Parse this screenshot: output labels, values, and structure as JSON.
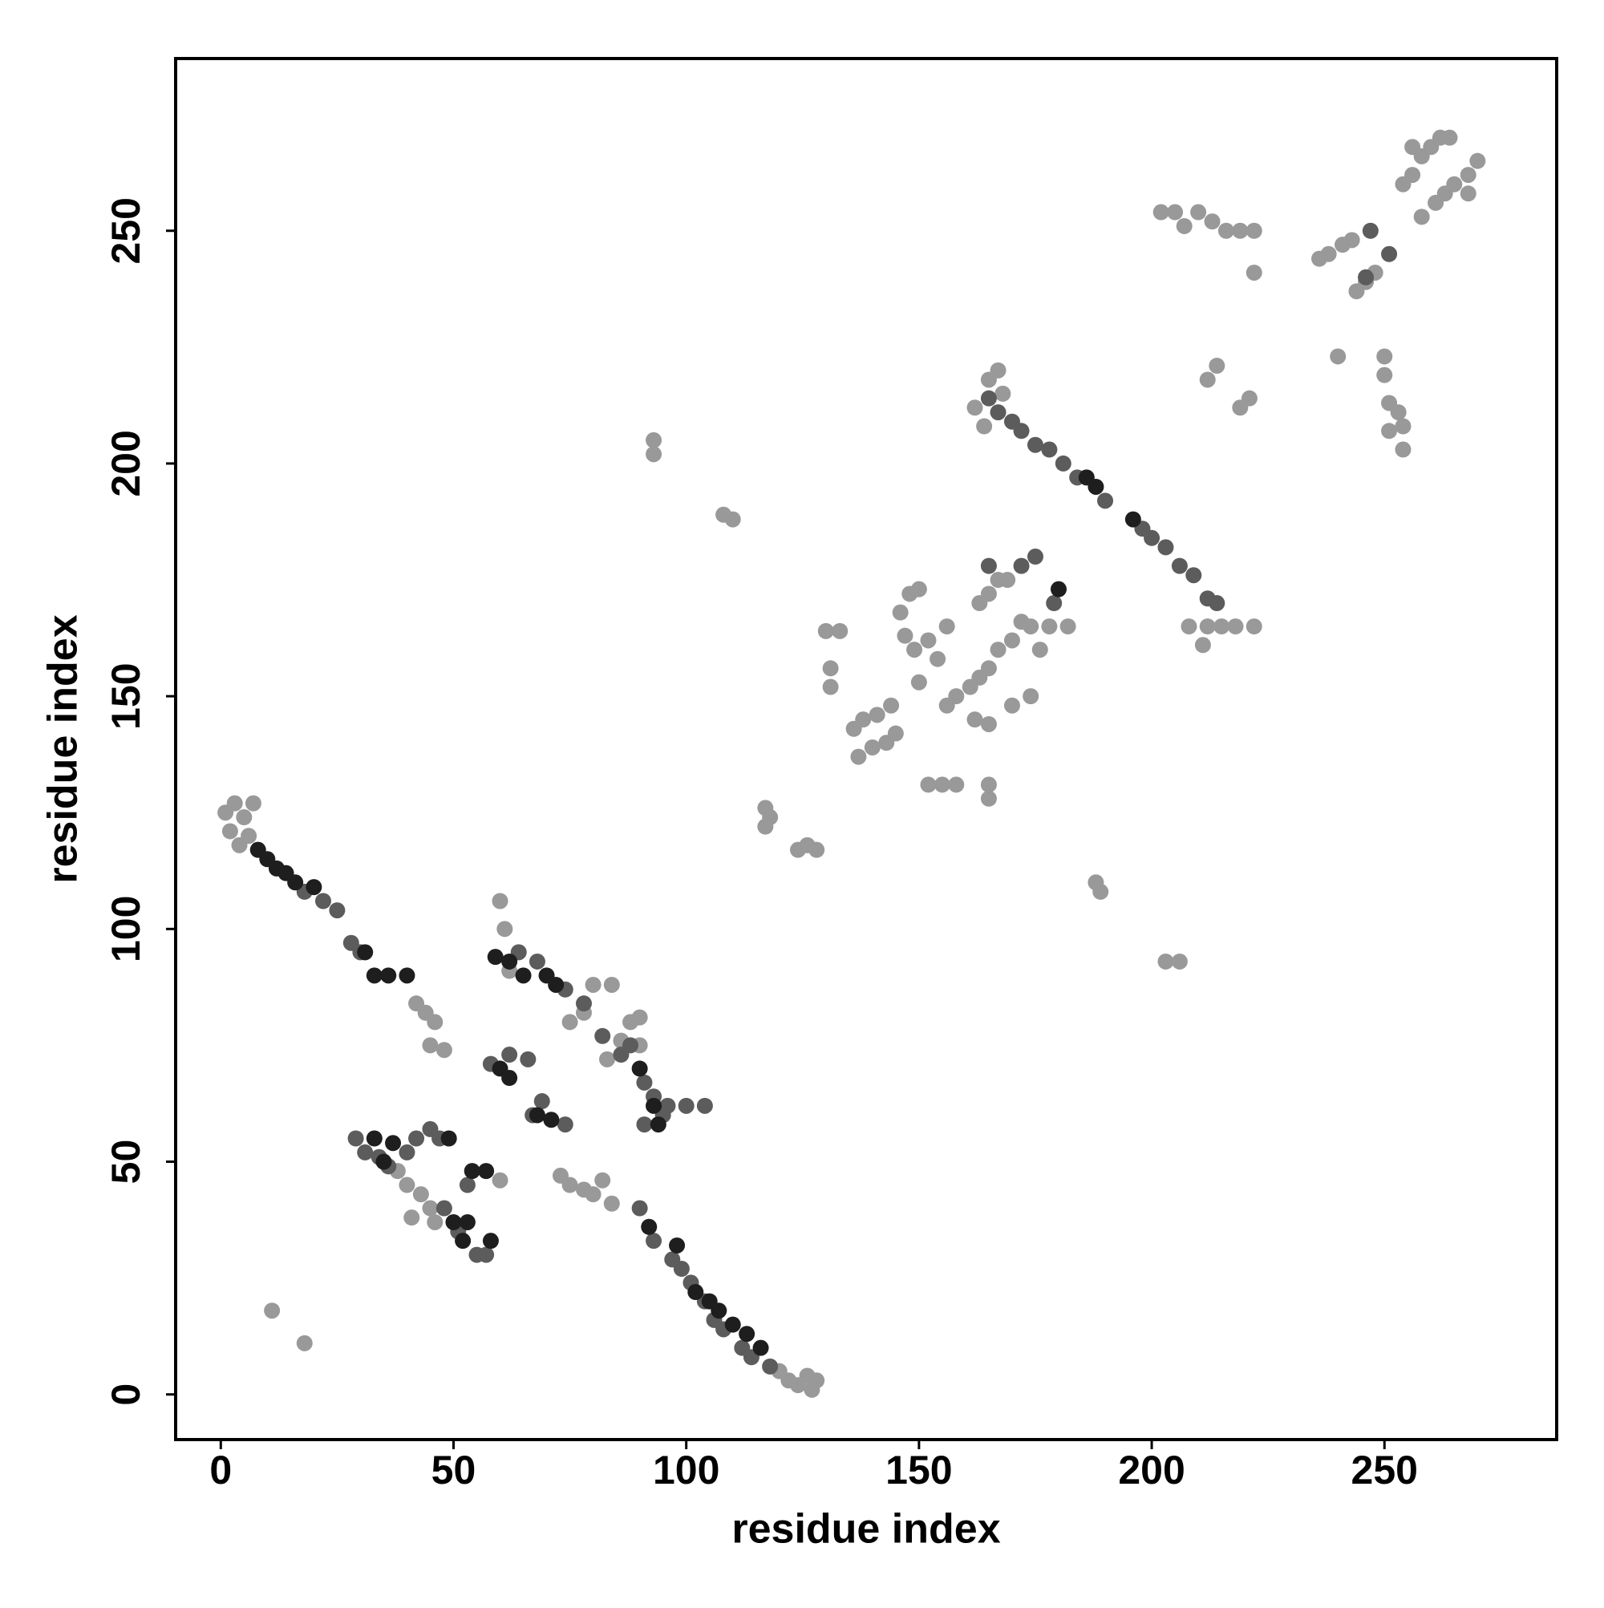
{
  "chart_data": {
    "type": "scatter",
    "x_label": "residue index",
    "y_label": "residue index",
    "xlim": [
      -9.7,
      287
    ],
    "ylim": [
      -9.7,
      287
    ],
    "xticks": [
      0,
      50,
      100,
      150,
      200,
      250
    ],
    "yticks": [
      0,
      50,
      100,
      150,
      200,
      250
    ],
    "series": [
      {
        "color": "#999999",
        "x": [
          1,
          3,
          5,
          2,
          6,
          4,
          7,
          44,
          46,
          42,
          45,
          48,
          38,
          40,
          43,
          45,
          41,
          46,
          60,
          61,
          60,
          73,
          75,
          78,
          80,
          82,
          84,
          78,
          75,
          80,
          84,
          90,
          83,
          86,
          88,
          90,
          62,
          120,
          122,
          124,
          126,
          128,
          127,
          11,
          18,
          93,
          93,
          108,
          110,
          188,
          189,
          203,
          206,
          117,
          118,
          117,
          124,
          126,
          128,
          130,
          133,
          131,
          131,
          136,
          138,
          141,
          144,
          137,
          140,
          143,
          145,
          146,
          148,
          150,
          147,
          149,
          152,
          154,
          156,
          150,
          152,
          155,
          158,
          156,
          158,
          161,
          163,
          165,
          167,
          170,
          172,
          174,
          176,
          162,
          165,
          170,
          174,
          165,
          167,
          163,
          169,
          178,
          182,
          165,
          165,
          167,
          165,
          162,
          164,
          168,
          208,
          212,
          215,
          218,
          222,
          211,
          202,
          205,
          207,
          210,
          213,
          216,
          219,
          222,
          222,
          212,
          214,
          219,
          221,
          236,
          238,
          241,
          243,
          244,
          246,
          248,
          240,
          250,
          250,
          251,
          253,
          254,
          254,
          251,
          254,
          256,
          258,
          260,
          262,
          256,
          258,
          261,
          263,
          265,
          268,
          270,
          268,
          264
        ],
        "y": [
          125,
          127,
          124,
          121,
          120,
          118,
          127,
          82,
          80,
          84,
          75,
          74,
          48,
          45,
          43,
          40,
          38,
          37,
          106,
          100,
          46,
          47,
          45,
          44,
          43,
          46,
          41,
          82,
          80,
          88,
          88,
          81,
          72,
          76,
          80,
          75,
          91,
          5,
          3,
          2,
          4,
          3,
          1,
          18,
          11,
          205,
          202,
          189,
          188,
          110,
          108,
          93,
          93,
          126,
          124,
          122,
          117,
          118,
          117,
          164,
          164,
          156,
          152,
          143,
          145,
          146,
          148,
          137,
          139,
          140,
          142,
          168,
          172,
          173,
          163,
          160,
          162,
          158,
          165,
          153,
          131,
          131,
          131,
          148,
          150,
          152,
          154,
          156,
          160,
          162,
          166,
          165,
          160,
          145,
          144,
          148,
          150,
          172,
          175,
          170,
          175,
          165,
          165,
          128,
          131,
          220,
          218,
          212,
          208,
          215,
          165,
          165,
          165,
          165,
          165,
          161,
          254,
          254,
          251,
          254,
          252,
          250,
          250,
          250,
          241,
          218,
          221,
          212,
          214,
          244,
          245,
          247,
          248,
          237,
          239,
          241,
          223,
          223,
          219,
          213,
          211,
          208,
          203,
          207,
          260,
          262,
          266,
          268,
          270,
          268,
          253,
          256,
          258,
          260,
          262,
          265,
          258,
          270
        ]
      },
      {
        "color": "#5c5c5c",
        "x": [
          18,
          22,
          25,
          28,
          30,
          29,
          31,
          34,
          36,
          40,
          42,
          45,
          47,
          48,
          51,
          55,
          57,
          53,
          64,
          68,
          74,
          78,
          82,
          86,
          88,
          91,
          93,
          96,
          100,
          104,
          91,
          95,
          58,
          62,
          66,
          69,
          67,
          74,
          90,
          93,
          97,
          99,
          101,
          104,
          106,
          108,
          112,
          114,
          118,
          165,
          167,
          170,
          172,
          175,
          178,
          181,
          184,
          190,
          198,
          200,
          203,
          206,
          209,
          212,
          214,
          247,
          251,
          246,
          175,
          172,
          165,
          179
        ],
        "y": [
          108,
          106,
          104,
          97,
          95,
          55,
          52,
          51,
          49,
          52,
          55,
          57,
          55,
          40,
          35,
          30,
          30,
          45,
          95,
          93,
          87,
          84,
          77,
          73,
          75,
          67,
          64,
          62,
          62,
          62,
          58,
          60,
          71,
          73,
          72,
          63,
          60,
          58,
          40,
          33,
          29,
          27,
          24,
          20,
          16,
          14,
          10,
          8,
          6,
          214,
          211,
          209,
          207,
          204,
          203,
          200,
          197,
          192,
          186,
          184,
          182,
          178,
          176,
          171,
          170,
          250,
          245,
          240,
          180,
          178,
          178,
          170
        ]
      },
      {
        "color": "#1e1e1e",
        "x": [
          8,
          10,
          12,
          14,
          16,
          20,
          33,
          36,
          40,
          31,
          54,
          57,
          53,
          50,
          49,
          37,
          33,
          35,
          58,
          52,
          59,
          62,
          65,
          70,
          72,
          68,
          71,
          94,
          93,
          90,
          60,
          62,
          98,
          92,
          102,
          105,
          107,
          110,
          113,
          116,
          188,
          196,
          186,
          180
        ],
        "y": [
          117,
          115,
          113,
          112,
          110,
          109,
          90,
          90,
          90,
          95,
          48,
          48,
          37,
          37,
          55,
          54,
          55,
          50,
          33,
          33,
          94,
          93,
          90,
          90,
          88,
          60,
          59,
          58,
          62,
          70,
          70,
          68,
          32,
          36,
          22,
          20,
          18,
          15,
          13,
          10,
          195,
          188,
          197,
          173
        ]
      }
    ]
  }
}
